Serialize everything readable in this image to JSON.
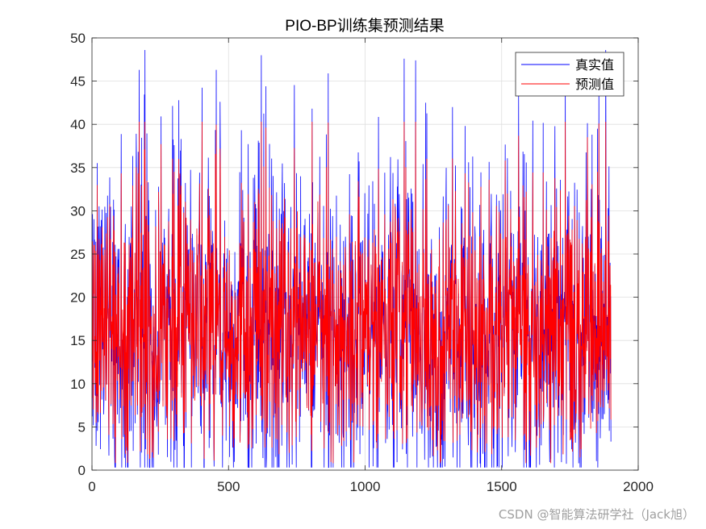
{
  "chart_data": {
    "type": "line",
    "title": "PIO-BP训练集预测结果",
    "xlabel": "",
    "ylabel": "",
    "xlim": [
      0,
      2000
    ],
    "ylim": [
      0,
      50
    ],
    "xticks": [
      0,
      500,
      1000,
      1500,
      2000
    ],
    "yticks": [
      0,
      5,
      10,
      15,
      20,
      25,
      30,
      35,
      40,
      45,
      50
    ],
    "grid": true,
    "legend_position": "top-right",
    "n_points": 1900,
    "series": [
      {
        "name": "真实值",
        "color": "#0000ff",
        "summary": {
          "min": 0.3,
          "max": 48.6,
          "mean": 16.5
        }
      },
      {
        "name": "预测值",
        "color": "#ff0000",
        "summary": {
          "min": 0.8,
          "max": 40.3,
          "mean": 16.5
        }
      }
    ],
    "notable_peaks": [
      {
        "x": 193,
        "y": 48.6
      },
      {
        "x": 619,
        "y": 48.0
      },
      {
        "x": 172,
        "y": 46.3
      },
      {
        "x": 454,
        "y": 46.3
      },
      {
        "x": 864,
        "y": 45.9
      },
      {
        "x": 1184,
        "y": 47.4
      },
      {
        "x": 1880,
        "y": 48.6
      }
    ]
  },
  "watermark": "CSDN @智能算法研学社（Jack旭）"
}
